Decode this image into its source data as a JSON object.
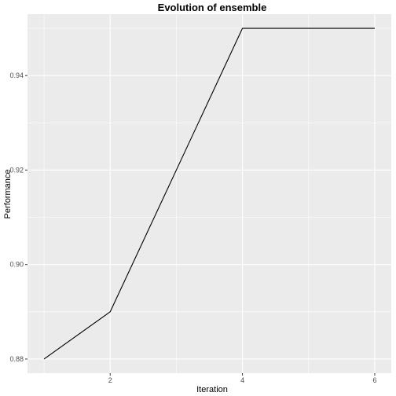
{
  "chart_data": {
    "type": "line",
    "title": "Evolution of ensemble",
    "xlabel": "Iteration",
    "ylabel": "Performance",
    "x": [
      1,
      2,
      3,
      4,
      5,
      6
    ],
    "series": [
      {
        "values": [
          0.88,
          0.89,
          0.92,
          0.95,
          0.95,
          0.95
        ]
      }
    ],
    "xlim": [
      0.75,
      6.25
    ],
    "ylim": [
      0.877,
      0.953
    ],
    "x_ticks": [
      2,
      4,
      6
    ],
    "x_tick_labels": [
      "2",
      "4",
      "6"
    ],
    "y_ticks": [
      0.88,
      0.9,
      0.92,
      0.94
    ],
    "y_tick_labels": [
      "0.88",
      "0.90",
      "0.92",
      "0.94"
    ],
    "grid": true,
    "colors": {
      "panel_background": "#EBEBEB",
      "grid_major": "#FFFFFF",
      "line": "#000000",
      "tick_text": "#4D4D4D",
      "tick_mark": "#333333"
    }
  }
}
